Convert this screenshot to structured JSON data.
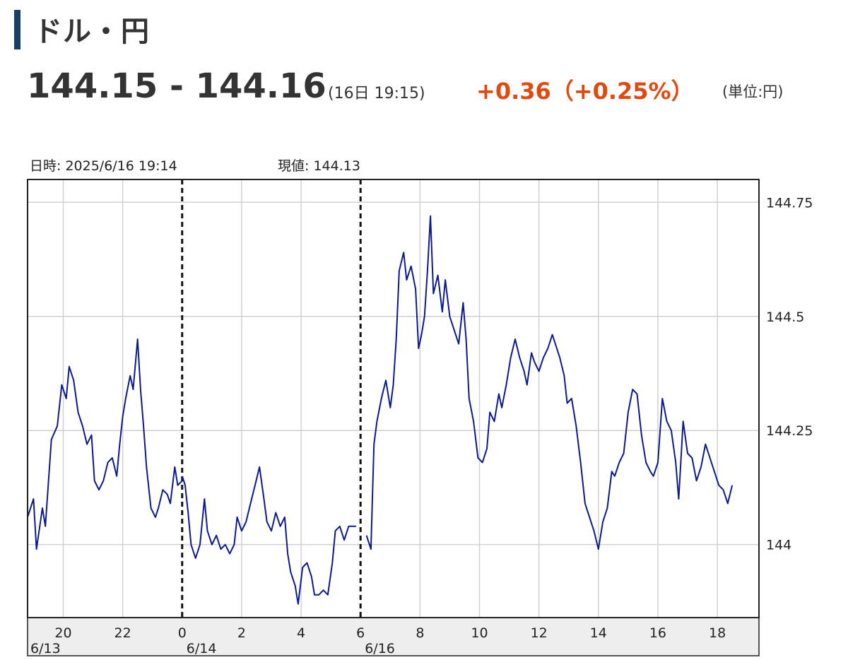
{
  "header": {
    "title": "ドル・円",
    "price_range": "144.15 - 144.16",
    "timestamp": "(16日 19:15)",
    "change": "+0.36（+0.25%）",
    "unit": "(単位:円)"
  },
  "hover_info": {
    "datetime": "日時: 2025/6/16  19:14",
    "value": "現値: 144.13"
  },
  "colors": {
    "title_bar": "#1b3f60",
    "change": "#e04a11",
    "series_line": "#0d1a8c",
    "grid": "#d0d0d0",
    "axis_band": "#eeeeee"
  },
  "chart_data": {
    "type": "line",
    "title": "",
    "xlabel": "",
    "ylabel": "",
    "ylim": [
      143.84,
      144.8
    ],
    "y_ticks": [
      {
        "value": 144.75,
        "label": "144.75"
      },
      {
        "value": 144.5,
        "label": "144.5"
      },
      {
        "value": 144.25,
        "label": "144.25"
      },
      {
        "value": 144.0,
        "label": "144"
      }
    ],
    "x_range_hours": [
      18.8,
      43.4
    ],
    "x_ticks": [
      {
        "t": 20,
        "label": "20"
      },
      {
        "t": 22,
        "label": "22"
      },
      {
        "t": 24,
        "label": "0"
      },
      {
        "t": 26,
        "label": "2"
      },
      {
        "t": 28,
        "label": "4"
      },
      {
        "t": 30,
        "label": "6"
      },
      {
        "t": 30,
        "label": "6"
      },
      {
        "t": 32,
        "label": "8"
      },
      {
        "t": 34,
        "label": "10"
      },
      {
        "t": 36,
        "label": "12"
      },
      {
        "t": 38,
        "label": "14"
      },
      {
        "t": 40,
        "label": "16"
      },
      {
        "t": 42,
        "label": "18"
      }
    ],
    "date_labels": [
      {
        "t": 18.8,
        "label": "6/13"
      },
      {
        "t": 24,
        "label": "6/14"
      },
      {
        "t": 30,
        "label": "6/16"
      }
    ],
    "session_breaks": [
      24,
      30
    ],
    "grid": true,
    "series": [
      {
        "segments": [
          [
            [
              18.8,
              144.06
            ],
            [
              19.0,
              144.1
            ],
            [
              19.1,
              143.99
            ],
            [
              19.3,
              144.08
            ],
            [
              19.4,
              144.04
            ],
            [
              19.6,
              144.23
            ],
            [
              19.8,
              144.26
            ],
            [
              19.95,
              144.35
            ],
            [
              20.1,
              144.32
            ],
            [
              20.2,
              144.39
            ],
            [
              20.35,
              144.36
            ],
            [
              20.5,
              144.29
            ],
            [
              20.65,
              144.26
            ],
            [
              20.8,
              144.22
            ],
            [
              20.95,
              144.24
            ],
            [
              21.05,
              144.14
            ],
            [
              21.2,
              144.12
            ],
            [
              21.35,
              144.14
            ],
            [
              21.5,
              144.18
            ],
            [
              21.65,
              144.19
            ],
            [
              21.8,
              144.15
            ],
            [
              21.9,
              144.22
            ],
            [
              22.0,
              144.28
            ],
            [
              22.1,
              144.32
            ],
            [
              22.25,
              144.37
            ],
            [
              22.35,
              144.34
            ],
            [
              22.5,
              144.45
            ],
            [
              22.6,
              144.34
            ],
            [
              22.7,
              144.26
            ],
            [
              22.8,
              144.17
            ],
            [
              22.95,
              144.08
            ],
            [
              23.1,
              144.06
            ],
            [
              23.2,
              144.08
            ],
            [
              23.35,
              144.12
            ],
            [
              23.5,
              144.11
            ],
            [
              23.6,
              144.09
            ],
            [
              23.75,
              144.17
            ],
            [
              23.85,
              144.13
            ],
            [
              24.0,
              144.14
            ]
          ],
          [
            [
              24.0,
              144.15
            ],
            [
              24.1,
              144.13
            ],
            [
              24.2,
              144.07
            ],
            [
              24.3,
              144.0
            ],
            [
              24.45,
              143.97
            ],
            [
              24.6,
              144.0
            ],
            [
              24.75,
              144.1
            ],
            [
              24.85,
              144.03
            ],
            [
              25.0,
              144.0
            ],
            [
              25.15,
              144.02
            ],
            [
              25.3,
              143.99
            ],
            [
              25.45,
              144.0
            ],
            [
              25.6,
              143.98
            ],
            [
              25.75,
              144.0
            ],
            [
              25.85,
              144.06
            ],
            [
              26.0,
              144.03
            ],
            [
              26.15,
              144.05
            ],
            [
              26.3,
              144.09
            ],
            [
              26.45,
              144.13
            ],
            [
              26.6,
              144.17
            ],
            [
              26.75,
              144.1
            ],
            [
              26.85,
              144.05
            ],
            [
              27.0,
              144.03
            ],
            [
              27.15,
              144.07
            ],
            [
              27.3,
              144.04
            ],
            [
              27.45,
              144.06
            ],
            [
              27.55,
              143.98
            ],
            [
              27.65,
              143.94
            ],
            [
              27.8,
              143.91
            ],
            [
              27.9,
              143.87
            ],
            [
              28.05,
              143.95
            ],
            [
              28.2,
              143.96
            ],
            [
              28.35,
              143.93
            ],
            [
              28.45,
              143.89
            ],
            [
              28.6,
              143.89
            ],
            [
              28.75,
              143.9
            ],
            [
              28.9,
              143.89
            ],
            [
              29.05,
              143.96
            ],
            [
              29.15,
              144.03
            ],
            [
              29.3,
              144.04
            ],
            [
              29.45,
              144.01
            ],
            [
              29.6,
              144.04
            ],
            [
              29.75,
              144.04
            ],
            [
              29.85,
              144.04
            ]
          ],
          [
            [
              30.2,
              144.02
            ],
            [
              30.35,
              143.99
            ],
            [
              30.45,
              144.22
            ],
            [
              30.55,
              144.27
            ],
            [
              30.7,
              144.32
            ],
            [
              30.85,
              144.36
            ],
            [
              31.0,
              144.3
            ],
            [
              31.1,
              144.35
            ],
            [
              31.2,
              144.45
            ],
            [
              31.3,
              144.6
            ],
            [
              31.45,
              144.64
            ],
            [
              31.55,
              144.58
            ],
            [
              31.7,
              144.61
            ],
            [
              31.85,
              144.56
            ],
            [
              31.95,
              144.43
            ],
            [
              32.05,
              144.46
            ],
            [
              32.15,
              144.5
            ],
            [
              32.25,
              144.6
            ],
            [
              32.35,
              144.72
            ],
            [
              32.45,
              144.55
            ],
            [
              32.6,
              144.59
            ],
            [
              32.75,
              144.51
            ],
            [
              32.85,
              144.58
            ],
            [
              33.0,
              144.5
            ],
            [
              33.15,
              144.47
            ],
            [
              33.3,
              144.44
            ],
            [
              33.45,
              144.53
            ],
            [
              33.55,
              144.45
            ],
            [
              33.65,
              144.32
            ],
            [
              33.8,
              144.27
            ],
            [
              33.95,
              144.19
            ],
            [
              34.1,
              144.18
            ],
            [
              34.25,
              144.21
            ],
            [
              34.35,
              144.29
            ],
            [
              34.5,
              144.27
            ],
            [
              34.65,
              144.33
            ],
            [
              34.75,
              144.3
            ],
            [
              34.9,
              144.35
            ],
            [
              35.05,
              144.41
            ],
            [
              35.2,
              144.45
            ],
            [
              35.35,
              144.41
            ],
            [
              35.5,
              144.38
            ],
            [
              35.6,
              144.35
            ],
            [
              35.75,
              144.42
            ],
            [
              35.85,
              144.4
            ],
            [
              36.0,
              144.38
            ],
            [
              36.15,
              144.41
            ],
            [
              36.3,
              144.43
            ],
            [
              36.45,
              144.46
            ],
            [
              36.55,
              144.44
            ],
            [
              36.7,
              144.41
            ],
            [
              36.85,
              144.37
            ],
            [
              36.95,
              144.31
            ],
            [
              37.1,
              144.32
            ],
            [
              37.25,
              144.26
            ],
            [
              37.4,
              144.18
            ],
            [
              37.55,
              144.09
            ],
            [
              37.7,
              144.06
            ],
            [
              37.85,
              144.03
            ],
            [
              38.0,
              143.99
            ],
            [
              38.15,
              144.05
            ],
            [
              38.3,
              144.08
            ],
            [
              38.45,
              144.16
            ],
            [
              38.55,
              144.15
            ],
            [
              38.7,
              144.18
            ],
            [
              38.85,
              144.2
            ],
            [
              39.0,
              144.29
            ],
            [
              39.15,
              144.34
            ],
            [
              39.3,
              144.33
            ],
            [
              39.45,
              144.24
            ],
            [
              39.6,
              144.18
            ],
            [
              39.75,
              144.16
            ],
            [
              39.85,
              144.15
            ],
            [
              40.0,
              144.18
            ],
            [
              40.15,
              144.32
            ],
            [
              40.3,
              144.27
            ],
            [
              40.45,
              144.25
            ],
            [
              40.6,
              144.18
            ],
            [
              40.7,
              144.1
            ],
            [
              40.85,
              144.27
            ],
            [
              41.0,
              144.2
            ],
            [
              41.15,
              144.19
            ],
            [
              41.3,
              144.14
            ],
            [
              41.45,
              144.17
            ],
            [
              41.6,
              144.22
            ],
            [
              41.75,
              144.19
            ],
            [
              41.9,
              144.16
            ],
            [
              42.05,
              144.13
            ],
            [
              42.2,
              144.12
            ],
            [
              42.35,
              144.09
            ],
            [
              42.5,
              144.13
            ]
          ]
        ]
      }
    ]
  }
}
